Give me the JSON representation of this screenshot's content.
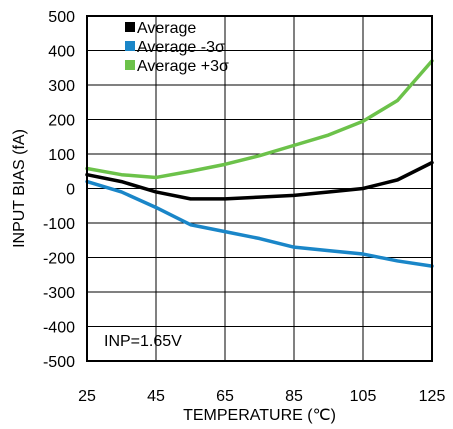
{
  "chart_data": {
    "type": "line",
    "title": "",
    "xlabel": "TEMPERATURE (℃)",
    "ylabel": "INPUT BIAS (fA)",
    "xlim": [
      25,
      125
    ],
    "ylim": [
      -500,
      500
    ],
    "x_ticks": [
      25,
      45,
      65,
      85,
      105,
      125
    ],
    "y_ticks": [
      500,
      400,
      300,
      200,
      100,
      0,
      -100,
      -200,
      -300,
      -400,
      -500
    ],
    "grid": true,
    "legend_position": "top-left",
    "annotation": "INP=1.65V",
    "series": [
      {
        "name": "Average",
        "color": "#000000",
        "x": [
          25,
          35,
          45,
          55,
          65,
          75,
          85,
          95,
          105,
          115,
          125
        ],
        "y": [
          40,
          20,
          -10,
          -30,
          -30,
          -25,
          -20,
          -10,
          0,
          25,
          75
        ]
      },
      {
        "name": "Average -3σ",
        "color": "#1a86c8",
        "x": [
          25,
          35,
          45,
          55,
          65,
          75,
          85,
          95,
          105,
          115,
          125
        ],
        "y": [
          20,
          -10,
          -55,
          -105,
          -125,
          -145,
          -170,
          -180,
          -190,
          -210,
          -225
        ]
      },
      {
        "name": "Average +3σ",
        "color": "#6cc24a",
        "x": [
          25,
          35,
          45,
          55,
          65,
          75,
          85,
          95,
          105,
          115,
          125
        ],
        "y": [
          58,
          40,
          32,
          50,
          70,
          95,
          125,
          155,
          195,
          255,
          370
        ]
      }
    ]
  }
}
